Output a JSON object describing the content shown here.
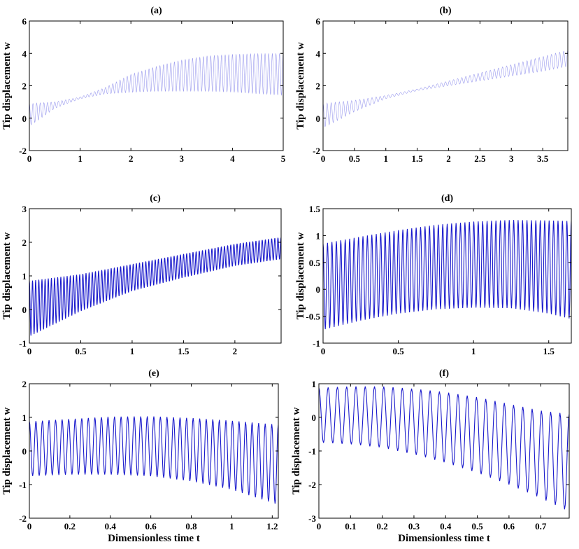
{
  "chart_data": [
    {
      "type": "line",
      "title": "(a)",
      "xlabel": "",
      "ylabel": "Tip displacement w",
      "xlim": [
        0,
        5
      ],
      "ylim": [
        -2,
        6
      ],
      "xticks": [
        0,
        1,
        2,
        3,
        4,
        5
      ],
      "yticks": [
        -2,
        0,
        2,
        4,
        6
      ],
      "grid": false,
      "line_color": "#9a9aee",
      "cycles": 70,
      "envelope": {
        "x": [
          0,
          0.5,
          1,
          1.5,
          2,
          2.5,
          3,
          3.5,
          4,
          4.5,
          5
        ],
        "upper": [
          0.9,
          1.0,
          1.3,
          1.9,
          2.7,
          3.2,
          3.6,
          3.85,
          3.95,
          4.0,
          4.0
        ],
        "lower": [
          -0.5,
          0.6,
          1.2,
          1.5,
          1.6,
          1.65,
          1.65,
          1.65,
          1.6,
          1.5,
          1.4
        ]
      }
    },
    {
      "type": "line",
      "title": "(b)",
      "xlabel": "",
      "ylabel": "Tip displacement w",
      "xlim": [
        0,
        3.9
      ],
      "ylim": [
        -2,
        6
      ],
      "xticks": [
        0,
        0.5,
        1,
        1.5,
        2,
        2.5,
        3,
        3.5
      ],
      "yticks": [
        -2,
        0,
        2,
        4,
        6
      ],
      "grid": false,
      "line_color": "#9a9aee",
      "cycles": 60,
      "envelope": {
        "x": [
          0,
          0.5,
          1,
          1.5,
          2,
          2.5,
          3,
          3.5,
          3.9
        ],
        "upper": [
          0.9,
          1.1,
          1.4,
          1.8,
          2.3,
          2.8,
          3.3,
          3.8,
          4.2
        ],
        "lower": [
          -0.6,
          0.4,
          1.2,
          1.7,
          2.0,
          2.3,
          2.6,
          2.9,
          3.2
        ]
      }
    },
    {
      "type": "line",
      "title": "(c)",
      "xlabel": "",
      "ylabel": "Tip displacement w",
      "xlim": [
        0,
        2.45
      ],
      "ylim": [
        -1,
        3
      ],
      "xticks": [
        0,
        0.5,
        1,
        1.5,
        2
      ],
      "yticks": [
        -1,
        0,
        1,
        2,
        3
      ],
      "grid": false,
      "line_color": "#1a1acc",
      "cycles": 80,
      "envelope": {
        "x": [
          0,
          0.5,
          1,
          1.5,
          2,
          2.45
        ],
        "upper": [
          0.85,
          1.05,
          1.35,
          1.65,
          1.95,
          2.15
        ],
        "lower": [
          -0.8,
          -0.05,
          0.55,
          0.95,
          1.3,
          1.5
        ]
      }
    },
    {
      "type": "line",
      "title": "(d)",
      "xlabel": "",
      "ylabel": "Tip displacement w",
      "xlim": [
        0,
        1.65
      ],
      "ylim": [
        -1,
        1.5
      ],
      "xticks": [
        0,
        0.5,
        1,
        1.5
      ],
      "yticks": [
        -1,
        -0.5,
        0,
        0.5,
        1,
        1.5
      ],
      "grid": false,
      "line_color": "#1a1acc",
      "cycles": 56,
      "envelope": {
        "x": [
          0,
          0.25,
          0.5,
          0.75,
          1,
          1.25,
          1.5,
          1.65
        ],
        "upper": [
          0.85,
          0.98,
          1.1,
          1.2,
          1.26,
          1.29,
          1.28,
          1.27
        ],
        "lower": [
          -0.75,
          -0.58,
          -0.45,
          -0.37,
          -0.34,
          -0.35,
          -0.45,
          -0.55
        ]
      }
    },
    {
      "type": "line",
      "title": "(e)",
      "xlabel": "Dimensionless time t",
      "ylabel": "Tip displacement w",
      "xlim": [
        0,
        1.23
      ],
      "ylim": [
        -2,
        2
      ],
      "xticks": [
        0,
        0.2,
        0.4,
        0.6,
        0.8,
        1,
        1.2
      ],
      "yticks": [
        -2,
        -1,
        0,
        1,
        2
      ],
      "grid": false,
      "line_color": "#1a1acc",
      "cycles": 38,
      "envelope": {
        "x": [
          0,
          0.2,
          0.4,
          0.6,
          0.8,
          1,
          1.23
        ],
        "upper": [
          0.88,
          0.95,
          1.02,
          1.03,
          0.98,
          0.9,
          0.78
        ],
        "lower": [
          -0.75,
          -0.7,
          -0.7,
          -0.75,
          -0.9,
          -1.15,
          -1.6
        ]
      }
    },
    {
      "type": "line",
      "title": "(f)",
      "xlabel": "Dimensionless time t",
      "ylabel": "Tip displacement w",
      "xlim": [
        0,
        0.79
      ],
      "ylim": [
        -3,
        1
      ],
      "xticks": [
        0,
        0.1,
        0.2,
        0.3,
        0.4,
        0.5,
        0.6,
        0.7
      ],
      "yticks": [
        -3,
        -2,
        -1,
        0,
        1
      ],
      "grid": false,
      "line_color": "#1a1acc",
      "cycles": 27,
      "envelope": {
        "x": [
          0,
          0.1,
          0.2,
          0.3,
          0.4,
          0.5,
          0.6,
          0.7,
          0.79
        ],
        "upper": [
          0.88,
          0.92,
          0.92,
          0.85,
          0.75,
          0.6,
          0.4,
          0.2,
          0.1
        ],
        "lower": [
          -0.75,
          -0.8,
          -0.9,
          -1.1,
          -1.35,
          -1.65,
          -2.0,
          -2.4,
          -2.8
        ]
      }
    }
  ]
}
